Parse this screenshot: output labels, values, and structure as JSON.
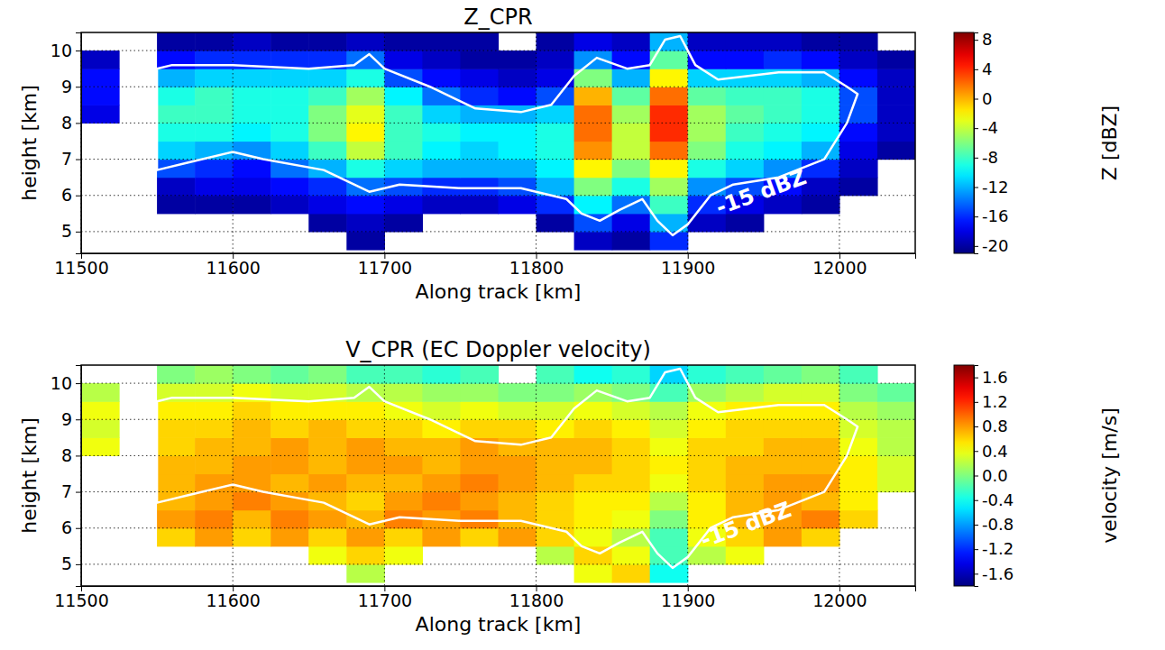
{
  "chart_data": [
    {
      "type": "heatmap",
      "title": "Z_CPR",
      "x_label": "Along track [km]",
      "y_label": "height [km]",
      "xlim": [
        11500,
        12050
      ],
      "xticks": [
        11500,
        11600,
        11700,
        11800,
        11900,
        12000
      ],
      "ylim": [
        4.4,
        10.5
      ],
      "yticks": [
        5,
        6,
        7,
        8,
        9,
        10
      ],
      "grid": true,
      "x": [
        11512.5,
        11537.5,
        11562.5,
        11587.5,
        11612.5,
        11637.5,
        11662.5,
        11687.5,
        11712.5,
        11737.5,
        11762.5,
        11787.5,
        11812.5,
        11837.5,
        11862.5,
        11887.5,
        11912.5,
        11937.5,
        11962.5,
        11987.5,
        12012.5,
        12037.5
      ],
      "y": [
        4.75,
        5.25,
        5.75,
        6.25,
        6.75,
        7.25,
        7.75,
        8.25,
        8.75,
        9.25,
        9.75,
        10.25
      ],
      "cells": [
        [
          null,
          null,
          null,
          null,
          null,
          null,
          null,
          -20,
          null,
          null,
          null,
          null,
          null,
          -19,
          -20,
          -16,
          null,
          null,
          null,
          null,
          null,
          null
        ],
        [
          null,
          null,
          null,
          null,
          null,
          null,
          -20,
          -19,
          -20,
          null,
          null,
          null,
          -20,
          -15,
          -18,
          -12,
          -19,
          -20,
          null,
          null,
          null,
          null
        ],
        [
          null,
          null,
          -20,
          -20,
          -20,
          -19,
          -18,
          -17,
          -18,
          -19,
          -19,
          -18,
          -16,
          -10,
          -14,
          -8,
          -16,
          -18,
          -19,
          -20,
          null,
          null
        ],
        [
          null,
          null,
          -19,
          -18,
          -18,
          -17,
          -16,
          -14,
          -15,
          -16,
          -16,
          -15,
          -12,
          -6,
          -9,
          -5,
          -13,
          -15,
          -17,
          -19,
          -20,
          null
        ],
        [
          null,
          null,
          -15,
          -16,
          -17,
          -14,
          -12,
          -9,
          -11,
          -12,
          -12,
          -12,
          -10,
          -2,
          -6,
          -2,
          -9,
          -11,
          -13,
          -16,
          -19,
          null
        ],
        [
          null,
          null,
          -11,
          -12,
          -13,
          -11,
          -8,
          -4,
          -8,
          -10,
          -11,
          -10,
          -9,
          1,
          -4,
          2,
          -6,
          -9,
          -10,
          -12,
          -18,
          -20
        ],
        [
          null,
          null,
          -9,
          -9,
          -10,
          -9,
          -6,
          -2,
          -8,
          -9,
          -10,
          -10,
          -9,
          2,
          -4,
          4,
          -5,
          -8,
          -9,
          -10,
          -17,
          -19
        ],
        [
          -18,
          null,
          -8,
          -8,
          -9,
          -9,
          -6,
          -3,
          -8,
          -11,
          -12,
          -12,
          -11,
          2,
          -5,
          4,
          -5,
          -7,
          -8,
          -9,
          -15,
          -19
        ],
        [
          -17,
          null,
          -9,
          -8,
          -9,
          -9,
          -8,
          -5,
          -10,
          -14,
          -16,
          -17,
          -15,
          0,
          -7,
          2,
          -7,
          -8,
          -8,
          -9,
          -15,
          -19
        ],
        [
          -17,
          null,
          -12,
          -11,
          -11,
          -11,
          -11,
          -9,
          -15,
          -17,
          -18,
          -19,
          -18,
          -6,
          -12,
          -2,
          -11,
          -11,
          -11,
          -12,
          -17,
          -19
        ],
        [
          -19,
          null,
          -17,
          -16,
          -16,
          -16,
          -16,
          -14,
          -18,
          -19,
          -20,
          -20,
          -19,
          -13,
          -17,
          -7,
          -17,
          -17,
          -16,
          -17,
          -19,
          -20
        ],
        [
          null,
          null,
          -20,
          -20,
          -19,
          -20,
          -20,
          -19,
          -20,
          -20,
          -20,
          null,
          -20,
          -18,
          -19,
          -12,
          -19,
          -19,
          -19,
          -20,
          -20,
          null
        ]
      ],
      "colorbar": {
        "label": "Z [dBZ]",
        "range": [
          -21,
          9
        ],
        "ticks": [
          8,
          4,
          0,
          -4,
          -8,
          -12,
          -16,
          -20
        ]
      },
      "contour": {
        "x": [
          11550,
          11560,
          11600,
          11650,
          11680,
          11690,
          11700,
          11730,
          11760,
          11790,
          11810,
          11825,
          11840,
          11860,
          11875,
          11885,
          11895,
          11905,
          11920,
          11960,
          11990,
          12005,
          12012,
          12005,
          11990,
          11960,
          11930,
          11915,
          11900,
          11890,
          11880,
          11870,
          11855,
          11842,
          11830,
          11820,
          11790,
          11750,
          11710,
          11690,
          11680,
          11660,
          11620,
          11600,
          11570,
          11550,
          11550
        ],
        "y": [
          9.5,
          9.6,
          9.6,
          9.5,
          9.6,
          9.9,
          9.5,
          9.0,
          8.4,
          8.3,
          8.5,
          9.3,
          9.8,
          9.5,
          9.6,
          10.3,
          10.4,
          9.6,
          9.2,
          9.4,
          9.4,
          9.0,
          8.8,
          8.0,
          7.0,
          6.5,
          6.3,
          6.0,
          5.2,
          4.9,
          5.3,
          5.9,
          5.6,
          5.3,
          5.5,
          5.9,
          6.2,
          6.2,
          6.3,
          6.1,
          6.3,
          6.7,
          7.0,
          7.2,
          6.9,
          6.7,
          9.5
        ]
      },
      "annotations": [
        {
          "text": "-15 dBZ",
          "x": 11950,
          "y": 5.9
        }
      ]
    },
    {
      "type": "heatmap",
      "title": "V_CPR (EC Doppler velocity)",
      "x_label": "Along track [km]",
      "y_label": "height [km]",
      "xlim": [
        11500,
        12050
      ],
      "xticks": [
        11500,
        11600,
        11700,
        11800,
        11900,
        12000
      ],
      "ylim": [
        4.4,
        10.5
      ],
      "yticks": [
        5,
        6,
        7,
        8,
        9,
        10
      ],
      "grid": true,
      "x": [
        11512.5,
        11537.5,
        11562.5,
        11587.5,
        11612.5,
        11637.5,
        11662.5,
        11687.5,
        11712.5,
        11737.5,
        11762.5,
        11787.5,
        11812.5,
        11837.5,
        11862.5,
        11887.5,
        11912.5,
        11937.5,
        11962.5,
        11987.5,
        12012.5,
        12037.5
      ],
      "y": [
        4.75,
        5.25,
        5.75,
        6.25,
        6.75,
        7.25,
        7.75,
        8.25,
        8.75,
        9.25,
        9.75,
        10.25
      ],
      "cells": [
        [
          null,
          null,
          null,
          null,
          null,
          null,
          null,
          0.2,
          null,
          null,
          null,
          null,
          null,
          0.4,
          0.6,
          -0.4,
          null,
          null,
          null,
          null,
          null,
          null
        ],
        [
          null,
          null,
          null,
          null,
          null,
          null,
          0.4,
          0.6,
          0.4,
          null,
          null,
          null,
          0.2,
          0.6,
          0.4,
          -0.2,
          0.2,
          0.4,
          null,
          null,
          null,
          null
        ],
        [
          null,
          null,
          0.6,
          0.8,
          0.6,
          0.8,
          0.6,
          0.8,
          0.6,
          0.8,
          0.6,
          0.8,
          0.6,
          0.4,
          0.2,
          -0.2,
          0.4,
          0.6,
          0.8,
          0.6,
          null,
          null
        ],
        [
          null,
          null,
          0.8,
          0.9,
          0.7,
          0.9,
          0.8,
          0.7,
          0.9,
          0.8,
          0.9,
          0.7,
          0.6,
          0.5,
          0.4,
          0.0,
          0.5,
          0.7,
          0.8,
          0.9,
          0.6,
          null
        ],
        [
          null,
          null,
          0.7,
          0.8,
          0.9,
          0.8,
          0.7,
          0.6,
          0.8,
          0.9,
          0.8,
          0.7,
          0.6,
          0.5,
          0.5,
          0.2,
          0.5,
          0.7,
          0.8,
          0.7,
          0.5,
          null
        ],
        [
          null,
          null,
          0.7,
          0.8,
          0.8,
          0.7,
          0.8,
          0.7,
          0.7,
          0.8,
          0.9,
          0.8,
          0.7,
          0.6,
          0.6,
          0.4,
          0.6,
          0.7,
          0.8,
          0.8,
          0.5,
          0.3
        ],
        [
          null,
          null,
          0.7,
          0.7,
          0.8,
          0.8,
          0.7,
          0.8,
          0.8,
          0.7,
          0.8,
          0.8,
          0.7,
          0.7,
          0.6,
          0.5,
          0.6,
          0.7,
          0.7,
          0.7,
          0.5,
          0.3
        ],
        [
          0.4,
          null,
          0.6,
          0.7,
          0.7,
          0.8,
          0.7,
          0.8,
          0.7,
          0.7,
          0.8,
          0.7,
          0.7,
          0.7,
          0.6,
          0.4,
          0.6,
          0.6,
          0.7,
          0.7,
          0.4,
          0.2
        ],
        [
          0.3,
          null,
          0.6,
          0.6,
          0.7,
          0.6,
          0.7,
          0.6,
          0.6,
          0.5,
          0.6,
          0.6,
          0.5,
          0.6,
          0.5,
          0.3,
          0.5,
          0.6,
          0.6,
          0.6,
          0.3,
          0.2
        ],
        [
          0.4,
          null,
          0.5,
          0.5,
          0.6,
          0.5,
          0.5,
          0.5,
          0.4,
          0.3,
          0.4,
          0.3,
          0.3,
          0.4,
          0.3,
          0.2,
          0.4,
          0.5,
          0.5,
          0.5,
          0.2,
          0.1
        ],
        [
          0.2,
          null,
          0.3,
          0.3,
          0.4,
          0.3,
          0.3,
          0.2,
          0.2,
          0.1,
          0.1,
          0.0,
          0.0,
          0.1,
          0.0,
          -0.2,
          0.1,
          0.2,
          0.3,
          0.3,
          0.0,
          -0.1
        ],
        [
          null,
          null,
          0.0,
          0.1,
          0.0,
          -0.1,
          0.0,
          -0.2,
          -0.2,
          -0.3,
          -0.2,
          null,
          -0.2,
          -0.4,
          -0.3,
          -0.6,
          -0.3,
          -0.2,
          -0.1,
          0.0,
          -0.2,
          null
        ]
      ],
      "colorbar": {
        "label": "velocity [m/s]",
        "range": [
          -1.8,
          1.8
        ],
        "ticks": [
          1.6,
          1.2,
          0.8,
          0.4,
          {
            "value": 0,
            "label": "0.0"
          },
          -0.4,
          -0.8,
          -1.2,
          -1.6
        ]
      },
      "contour": {
        "x": [
          11550,
          11560,
          11600,
          11650,
          11680,
          11690,
          11700,
          11730,
          11760,
          11790,
          11810,
          11825,
          11840,
          11860,
          11875,
          11885,
          11895,
          11905,
          11920,
          11960,
          11990,
          12005,
          12012,
          12005,
          11990,
          11960,
          11930,
          11915,
          11900,
          11890,
          11880,
          11870,
          11855,
          11842,
          11830,
          11820,
          11790,
          11750,
          11710,
          11690,
          11680,
          11660,
          11620,
          11600,
          11570,
          11550,
          11550
        ],
        "y": [
          9.5,
          9.6,
          9.6,
          9.5,
          9.6,
          9.9,
          9.5,
          9.0,
          8.4,
          8.3,
          8.5,
          9.3,
          9.8,
          9.5,
          9.6,
          10.3,
          10.4,
          9.6,
          9.2,
          9.4,
          9.4,
          9.0,
          8.8,
          8.0,
          7.0,
          6.5,
          6.3,
          6.0,
          5.2,
          4.9,
          5.3,
          5.9,
          5.6,
          5.3,
          5.5,
          5.9,
          6.2,
          6.2,
          6.3,
          6.1,
          6.3,
          6.7,
          7.0,
          7.2,
          6.9,
          6.7,
          9.5
        ]
      },
      "annotations": [
        {
          "text": "-15 dBZ",
          "x": 11940,
          "y": 5.9
        }
      ]
    }
  ]
}
